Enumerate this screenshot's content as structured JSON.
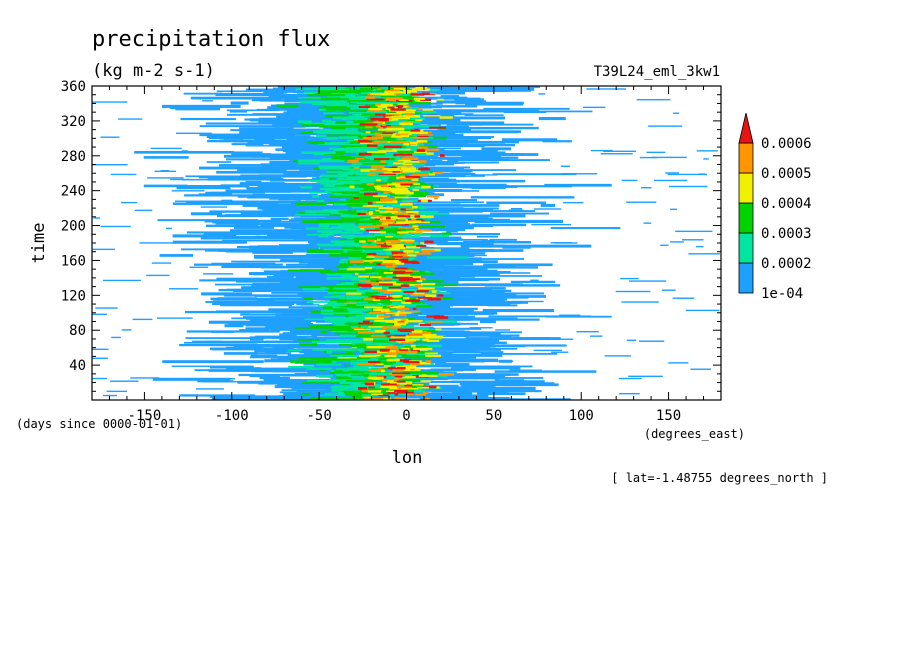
{
  "chart_data": {
    "type": "heatmap",
    "title": "precipitation flux",
    "units": "(kg m-2 s-1)",
    "run_label": "T39L24_eml_3kw1",
    "xlabel": "lon",
    "ylabel": "time",
    "x_unit_label": "(degrees_east)",
    "y_unit_label": "(days since 0000-01-01)",
    "footnote": "[ lat=-1.48755 degrees_north ]",
    "xlim": [
      -180,
      180
    ],
    "ylim": [
      0,
      360
    ],
    "x_ticks": [
      -150,
      -100,
      -50,
      0,
      50,
      100,
      150
    ],
    "x_tick_labels": [
      "-150",
      "-100",
      "-50",
      "0",
      "50",
      "100",
      "150"
    ],
    "y_ticks": [
      40,
      80,
      120,
      160,
      200,
      240,
      280,
      320,
      360
    ],
    "y_tick_labels": [
      "40",
      "80",
      "120",
      "160",
      "200",
      "240",
      "280",
      "320",
      "360"
    ],
    "colorbar": {
      "levels": [
        0.0001,
        0.0002,
        0.0003,
        0.0004,
        0.0005,
        0.0006
      ],
      "labels": [
        "1e-04",
        "0.0002",
        "0.0003",
        "0.0004",
        "0.0005",
        "0.0006"
      ],
      "colors": [
        "#1ea0ff",
        "#00e6a0",
        "#00d200",
        "#f0f000",
        "#ff9600",
        "#e61414"
      ],
      "extend": "max"
    },
    "structure": {
      "description_free": true,
      "core_lon_range": [
        -100,
        60
      ],
      "peak_lon_range": [
        -50,
        40
      ],
      "fringe_lon_range": [
        -180,
        175
      ]
    }
  }
}
